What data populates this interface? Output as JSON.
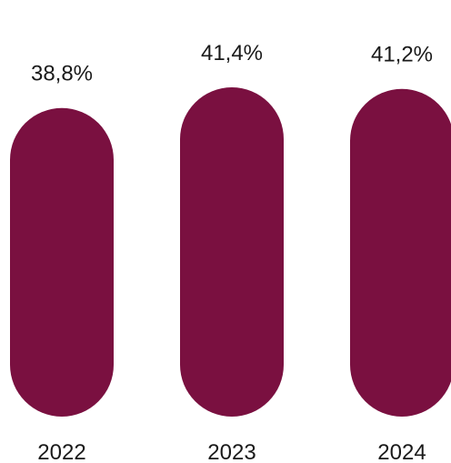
{
  "chart_data": {
    "type": "bar",
    "categories": [
      "2022",
      "2023",
      "2024"
    ],
    "values": [
      38.8,
      41.4,
      41.2
    ],
    "value_labels": [
      "38,8%",
      "41,4%",
      "41,2%"
    ],
    "bar_color": "#7a1040",
    "title": "",
    "xlabel": "",
    "ylabel": "",
    "grid": false
  }
}
